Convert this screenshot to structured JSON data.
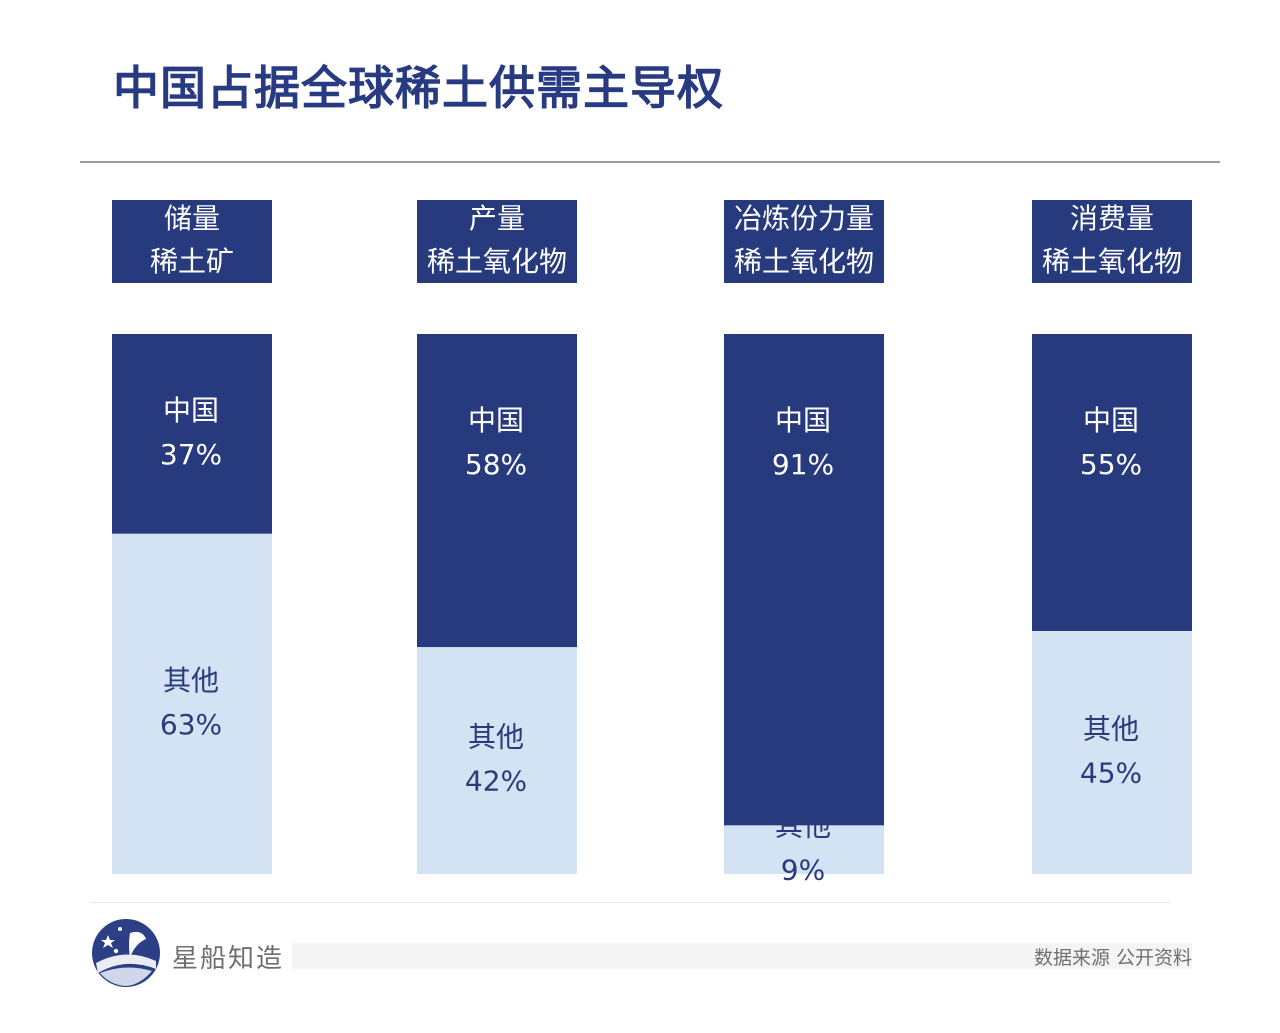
{
  "title": "中国占据全球稀土供需主导权",
  "colors": {
    "china": "#283a7e",
    "other": "#d4e3f3",
    "title": "#283a82",
    "label_bg": "#283a7e"
  },
  "chart_data": {
    "type": "bar",
    "stacked": true,
    "normalized": true,
    "categories": [
      [
        "储量",
        "稀土矿"
      ],
      [
        "产量",
        "稀土氧化物"
      ],
      [
        "冶炼份力量",
        "稀土氧化物"
      ],
      [
        "消费量",
        "稀土氧化物"
      ]
    ],
    "series": [
      {
        "name": "中国",
        "values": [
          37,
          58,
          91,
          55
        ],
        "labels": [
          "37%",
          "58%",
          "91%",
          "55%"
        ]
      },
      {
        "name": "其他",
        "values": [
          63,
          42,
          9,
          45
        ],
        "labels": [
          "63%",
          "42%",
          "9%",
          "45%"
        ]
      }
    ],
    "ylim": [
      0,
      100
    ],
    "grid": false,
    "legend": "none"
  },
  "footer": {
    "brand": "星船知造",
    "source": "数据来源  公开资料"
  }
}
